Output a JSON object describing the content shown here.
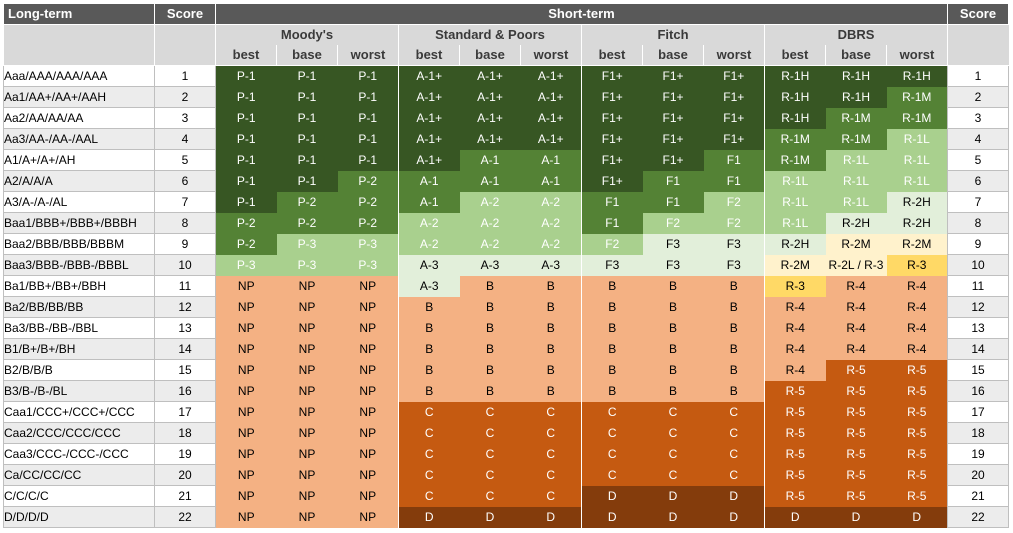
{
  "header": {
    "long_term": "Long-term",
    "score": "Score",
    "short_term": "Short-term",
    "score_right": "Score",
    "agencies": [
      "Moody's",
      "Standard & Poors",
      "Fitch",
      "DBRS"
    ],
    "scenarios": [
      "best",
      "base",
      "worst"
    ]
  },
  "colors": {
    "dark_green": "#375623",
    "mid_green": "#548235",
    "light_green": "#a9d08e",
    "pale_green": "#e2efda",
    "cream": "#fff2cc",
    "yellow": "#ffd966",
    "salmon": "#f4b183",
    "orange": "#c55a11",
    "brown": "#843c0c",
    "header_gray": "#595959"
  },
  "rows": [
    {
      "long": "Aaa/AAA/AAA/AAA",
      "score": "1",
      "score_right": "1",
      "cells": [
        [
          "P-1",
          "dg"
        ],
        [
          "P-1",
          "dg"
        ],
        [
          "P-1",
          "dg"
        ],
        [
          "A-1+",
          "dg"
        ],
        [
          "A-1+",
          "dg"
        ],
        [
          "A-1+",
          "dg"
        ],
        [
          "F1+",
          "dg"
        ],
        [
          "F1+",
          "dg"
        ],
        [
          "F1+",
          "dg"
        ],
        [
          "R-1H",
          "dg"
        ],
        [
          "R-1H",
          "dg"
        ],
        [
          "R-1H",
          "dg"
        ]
      ]
    },
    {
      "long": "Aa1/AA+/AA+/AAH",
      "score": "2",
      "score_right": "2",
      "cells": [
        [
          "P-1",
          "dg"
        ],
        [
          "P-1",
          "dg"
        ],
        [
          "P-1",
          "dg"
        ],
        [
          "A-1+",
          "dg"
        ],
        [
          "A-1+",
          "dg"
        ],
        [
          "A-1+",
          "dg"
        ],
        [
          "F1+",
          "dg"
        ],
        [
          "F1+",
          "dg"
        ],
        [
          "F1+",
          "dg"
        ],
        [
          "R-1H",
          "dg"
        ],
        [
          "R-1H",
          "dg"
        ],
        [
          "R-1M",
          "mg"
        ]
      ]
    },
    {
      "long": "Aa2/AA/AA/AA",
      "score": "3",
      "score_right": "3",
      "cells": [
        [
          "P-1",
          "dg"
        ],
        [
          "P-1",
          "dg"
        ],
        [
          "P-1",
          "dg"
        ],
        [
          "A-1+",
          "dg"
        ],
        [
          "A-1+",
          "dg"
        ],
        [
          "A-1+",
          "dg"
        ],
        [
          "F1+",
          "dg"
        ],
        [
          "F1+",
          "dg"
        ],
        [
          "F1+",
          "dg"
        ],
        [
          "R-1H",
          "dg"
        ],
        [
          "R-1M",
          "mg"
        ],
        [
          "R-1M",
          "mg"
        ]
      ]
    },
    {
      "long": "Aa3/AA-/AA-/AAL",
      "score": "4",
      "score_right": "4",
      "cells": [
        [
          "P-1",
          "dg"
        ],
        [
          "P-1",
          "dg"
        ],
        [
          "P-1",
          "dg"
        ],
        [
          "A-1+",
          "dg"
        ],
        [
          "A-1+",
          "dg"
        ],
        [
          "A-1+",
          "dg"
        ],
        [
          "F1+",
          "dg"
        ],
        [
          "F1+",
          "dg"
        ],
        [
          "F1+",
          "dg"
        ],
        [
          "R-1M",
          "mg"
        ],
        [
          "R-1M",
          "mg"
        ],
        [
          "R-1L",
          "lg"
        ]
      ]
    },
    {
      "long": "A1/A+/A+/AH",
      "score": "5",
      "score_right": "5",
      "cells": [
        [
          "P-1",
          "dg"
        ],
        [
          "P-1",
          "dg"
        ],
        [
          "P-1",
          "dg"
        ],
        [
          "A-1+",
          "dg"
        ],
        [
          "A-1",
          "mg"
        ],
        [
          "A-1",
          "mg"
        ],
        [
          "F1+",
          "dg"
        ],
        [
          "F1+",
          "dg"
        ],
        [
          "F1",
          "mg"
        ],
        [
          "R-1M",
          "mg"
        ],
        [
          "R-1L",
          "lg"
        ],
        [
          "R-1L",
          "lg"
        ]
      ]
    },
    {
      "long": "A2/A/A/A",
      "score": "6",
      "score_right": "6",
      "cells": [
        [
          "P-1",
          "dg"
        ],
        [
          "P-1",
          "dg"
        ],
        [
          "P-2",
          "mg"
        ],
        [
          "A-1",
          "mg"
        ],
        [
          "A-1",
          "mg"
        ],
        [
          "A-1",
          "mg"
        ],
        [
          "F1+",
          "dg"
        ],
        [
          "F1",
          "mg"
        ],
        [
          "F1",
          "mg"
        ],
        [
          "R-1L",
          "lg"
        ],
        [
          "R-1L",
          "lg"
        ],
        [
          "R-1L",
          "lg"
        ]
      ]
    },
    {
      "long": "A3/A-/A-/AL",
      "score": "7",
      "score_right": "7",
      "cells": [
        [
          "P-1",
          "dg"
        ],
        [
          "P-2",
          "mg"
        ],
        [
          "P-2",
          "mg"
        ],
        [
          "A-1",
          "mg"
        ],
        [
          "A-2",
          "lg"
        ],
        [
          "A-2",
          "lg"
        ],
        [
          "F1",
          "mg"
        ],
        [
          "F1",
          "mg"
        ],
        [
          "F2",
          "lg"
        ],
        [
          "R-1L",
          "lg"
        ],
        [
          "R-1L",
          "lg"
        ],
        [
          "R-2H",
          "pg"
        ]
      ]
    },
    {
      "long": "Baa1/BBB+/BBB+/BBBH",
      "score": "8",
      "score_right": "8",
      "cells": [
        [
          "P-2",
          "mg"
        ],
        [
          "P-2",
          "mg"
        ],
        [
          "P-2",
          "mg"
        ],
        [
          "A-2",
          "lg"
        ],
        [
          "A-2",
          "lg"
        ],
        [
          "A-2",
          "lg"
        ],
        [
          "F1",
          "mg"
        ],
        [
          "F2",
          "lg"
        ],
        [
          "F2",
          "lg"
        ],
        [
          "R-1L",
          "lg"
        ],
        [
          "R-2H",
          "pg"
        ],
        [
          "R-2H",
          "pg"
        ]
      ]
    },
    {
      "long": "Baa2/BBB/BBB/BBBM",
      "score": "9",
      "score_right": "9",
      "cells": [
        [
          "P-2",
          "mg"
        ],
        [
          "P-3",
          "lg"
        ],
        [
          "P-3",
          "lg"
        ],
        [
          "A-2",
          "lg"
        ],
        [
          "A-2",
          "lg"
        ],
        [
          "A-2",
          "lg"
        ],
        [
          "F2",
          "lg"
        ],
        [
          "F3",
          "pg"
        ],
        [
          "F3",
          "pg"
        ],
        [
          "R-2H",
          "pg"
        ],
        [
          "R-2M",
          "cr"
        ],
        [
          "R-2M",
          "cr"
        ]
      ]
    },
    {
      "long": "Baa3/BBB-/BBB-/BBBL",
      "score": "10",
      "score_right": "10",
      "cells": [
        [
          "P-3",
          "lg"
        ],
        [
          "P-3",
          "lg"
        ],
        [
          "P-3",
          "lg"
        ],
        [
          "A-3",
          "pg"
        ],
        [
          "A-3",
          "pg"
        ],
        [
          "A-3",
          "pg"
        ],
        [
          "F3",
          "pg"
        ],
        [
          "F3",
          "pg"
        ],
        [
          "F3",
          "pg"
        ],
        [
          "R-2M",
          "cr"
        ],
        [
          "R-2L / R-3",
          "cr"
        ],
        [
          "R-3",
          "yl"
        ]
      ]
    },
    {
      "long": "Ba1/BB+/BB+/BBH",
      "score": "11",
      "score_right": "11",
      "cells": [
        [
          "NP",
          "sa"
        ],
        [
          "NP",
          "sa"
        ],
        [
          "NP",
          "sa"
        ],
        [
          "A-3",
          "pg"
        ],
        [
          "B",
          "sa"
        ],
        [
          "B",
          "sa"
        ],
        [
          "B",
          "sa"
        ],
        [
          "B",
          "sa"
        ],
        [
          "B",
          "sa"
        ],
        [
          "R-3",
          "yl"
        ],
        [
          "R-4",
          "sa"
        ],
        [
          "R-4",
          "sa"
        ]
      ]
    },
    {
      "long": "Ba2/BB/BB/BB",
      "score": "12",
      "score_right": "12",
      "cells": [
        [
          "NP",
          "sa"
        ],
        [
          "NP",
          "sa"
        ],
        [
          "NP",
          "sa"
        ],
        [
          "B",
          "sa"
        ],
        [
          "B",
          "sa"
        ],
        [
          "B",
          "sa"
        ],
        [
          "B",
          "sa"
        ],
        [
          "B",
          "sa"
        ],
        [
          "B",
          "sa"
        ],
        [
          "R-4",
          "sa"
        ],
        [
          "R-4",
          "sa"
        ],
        [
          "R-4",
          "sa"
        ]
      ]
    },
    {
      "long": "Ba3/BB-/BB-/BBL",
      "score": "13",
      "score_right": "13",
      "cells": [
        [
          "NP",
          "sa"
        ],
        [
          "NP",
          "sa"
        ],
        [
          "NP",
          "sa"
        ],
        [
          "B",
          "sa"
        ],
        [
          "B",
          "sa"
        ],
        [
          "B",
          "sa"
        ],
        [
          "B",
          "sa"
        ],
        [
          "B",
          "sa"
        ],
        [
          "B",
          "sa"
        ],
        [
          "R-4",
          "sa"
        ],
        [
          "R-4",
          "sa"
        ],
        [
          "R-4",
          "sa"
        ]
      ]
    },
    {
      "long": "B1/B+/B+/BH",
      "score": "14",
      "score_right": "14",
      "cells": [
        [
          "NP",
          "sa"
        ],
        [
          "NP",
          "sa"
        ],
        [
          "NP",
          "sa"
        ],
        [
          "B",
          "sa"
        ],
        [
          "B",
          "sa"
        ],
        [
          "B",
          "sa"
        ],
        [
          "B",
          "sa"
        ],
        [
          "B",
          "sa"
        ],
        [
          "B",
          "sa"
        ],
        [
          "R-4",
          "sa"
        ],
        [
          "R-4",
          "sa"
        ],
        [
          "R-4",
          "sa"
        ]
      ]
    },
    {
      "long": "B2/B/B/B",
      "score": "15",
      "score_right": "15",
      "cells": [
        [
          "NP",
          "sa"
        ],
        [
          "NP",
          "sa"
        ],
        [
          "NP",
          "sa"
        ],
        [
          "B",
          "sa"
        ],
        [
          "B",
          "sa"
        ],
        [
          "B",
          "sa"
        ],
        [
          "B",
          "sa"
        ],
        [
          "B",
          "sa"
        ],
        [
          "B",
          "sa"
        ],
        [
          "R-4",
          "sa"
        ],
        [
          "R-5",
          "or"
        ],
        [
          "R-5",
          "or"
        ]
      ]
    },
    {
      "long": "B3/B-/B-/BL",
      "score": "16",
      "score_right": "16",
      "cells": [
        [
          "NP",
          "sa"
        ],
        [
          "NP",
          "sa"
        ],
        [
          "NP",
          "sa"
        ],
        [
          "B",
          "sa"
        ],
        [
          "B",
          "sa"
        ],
        [
          "B",
          "sa"
        ],
        [
          "B",
          "sa"
        ],
        [
          "B",
          "sa"
        ],
        [
          "B",
          "sa"
        ],
        [
          "R-5",
          "or"
        ],
        [
          "R-5",
          "or"
        ],
        [
          "R-5",
          "or"
        ]
      ]
    },
    {
      "long": "Caa1/CCC+/CCC+/CCC",
      "score": "17",
      "score_right": "17",
      "cells": [
        [
          "NP",
          "sa"
        ],
        [
          "NP",
          "sa"
        ],
        [
          "NP",
          "sa"
        ],
        [
          "C",
          "or"
        ],
        [
          "C",
          "or"
        ],
        [
          "C",
          "or"
        ],
        [
          "C",
          "or"
        ],
        [
          "C",
          "or"
        ],
        [
          "C",
          "or"
        ],
        [
          "R-5",
          "or"
        ],
        [
          "R-5",
          "or"
        ],
        [
          "R-5",
          "or"
        ]
      ]
    },
    {
      "long": "Caa2/CCC/CCC/CCC",
      "score": "18",
      "score_right": "18",
      "cells": [
        [
          "NP",
          "sa"
        ],
        [
          "NP",
          "sa"
        ],
        [
          "NP",
          "sa"
        ],
        [
          "C",
          "or"
        ],
        [
          "C",
          "or"
        ],
        [
          "C",
          "or"
        ],
        [
          "C",
          "or"
        ],
        [
          "C",
          "or"
        ],
        [
          "C",
          "or"
        ],
        [
          "R-5",
          "or"
        ],
        [
          "R-5",
          "or"
        ],
        [
          "R-5",
          "or"
        ]
      ]
    },
    {
      "long": "Caa3/CCC-/CCC-/CCC",
      "score": "19",
      "score_right": "19",
      "cells": [
        [
          "NP",
          "sa"
        ],
        [
          "NP",
          "sa"
        ],
        [
          "NP",
          "sa"
        ],
        [
          "C",
          "or"
        ],
        [
          "C",
          "or"
        ],
        [
          "C",
          "or"
        ],
        [
          "C",
          "or"
        ],
        [
          "C",
          "or"
        ],
        [
          "C",
          "or"
        ],
        [
          "R-5",
          "or"
        ],
        [
          "R-5",
          "or"
        ],
        [
          "R-5",
          "or"
        ]
      ]
    },
    {
      "long": "Ca/CC/CC/CC",
      "score": "20",
      "score_right": "20",
      "cells": [
        [
          "NP",
          "sa"
        ],
        [
          "NP",
          "sa"
        ],
        [
          "NP",
          "sa"
        ],
        [
          "C",
          "or"
        ],
        [
          "C",
          "or"
        ],
        [
          "C",
          "or"
        ],
        [
          "C",
          "or"
        ],
        [
          "C",
          "or"
        ],
        [
          "C",
          "or"
        ],
        [
          "R-5",
          "or"
        ],
        [
          "R-5",
          "or"
        ],
        [
          "R-5",
          "or"
        ]
      ]
    },
    {
      "long": "C/C/C/C",
      "score": "21",
      "score_right": "21",
      "cells": [
        [
          "NP",
          "sa"
        ],
        [
          "NP",
          "sa"
        ],
        [
          "NP",
          "sa"
        ],
        [
          "C",
          "or"
        ],
        [
          "C",
          "or"
        ],
        [
          "C",
          "or"
        ],
        [
          "D",
          "br"
        ],
        [
          "D",
          "br"
        ],
        [
          "D",
          "br"
        ],
        [
          "R-5",
          "or"
        ],
        [
          "R-5",
          "or"
        ],
        [
          "R-5",
          "or"
        ]
      ]
    },
    {
      "long": "D/D/D/D",
      "score": "22",
      "score_right": "22",
      "cells": [
        [
          "NP",
          "sa"
        ],
        [
          "NP",
          "sa"
        ],
        [
          "NP",
          "sa"
        ],
        [
          "D",
          "br"
        ],
        [
          "D",
          "br"
        ],
        [
          "D",
          "br"
        ],
        [
          "D",
          "br"
        ],
        [
          "D",
          "br"
        ],
        [
          "D",
          "br"
        ],
        [
          "D",
          "br"
        ],
        [
          "D",
          "br"
        ],
        [
          "D",
          "br"
        ]
      ]
    }
  ]
}
